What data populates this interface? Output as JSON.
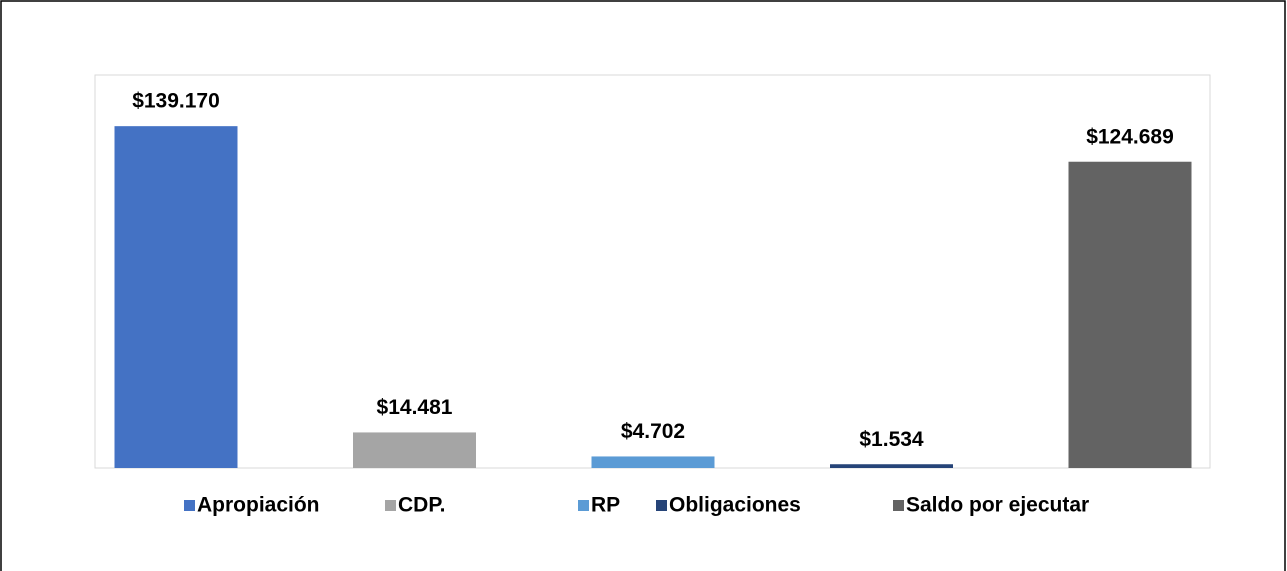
{
  "chart_data": {
    "type": "bar",
    "series": [
      {
        "name": "Apropiación",
        "color": "#4472c4",
        "values": [
          139170
        ],
        "value_labels": [
          "$139.170"
        ]
      },
      {
        "name": "CDP.",
        "color": "#a5a5a5",
        "values": [
          14481
        ],
        "value_labels": [
          "$14.481"
        ]
      },
      {
        "name": "RP",
        "color": "#5b9bd5",
        "values": [
          4702
        ],
        "value_labels": [
          "$4.702"
        ]
      },
      {
        "name": "Obligaciones",
        "color": "#264478",
        "values": [
          1534
        ],
        "value_labels": [
          "$1.534"
        ]
      },
      {
        "name": "Saldo por ejecutar",
        "color": "#636363",
        "values": [
          124689
        ],
        "value_labels": [
          "$124.689"
        ]
      }
    ],
    "ylim": [
      0,
      160000
    ],
    "legend": "bottom"
  }
}
